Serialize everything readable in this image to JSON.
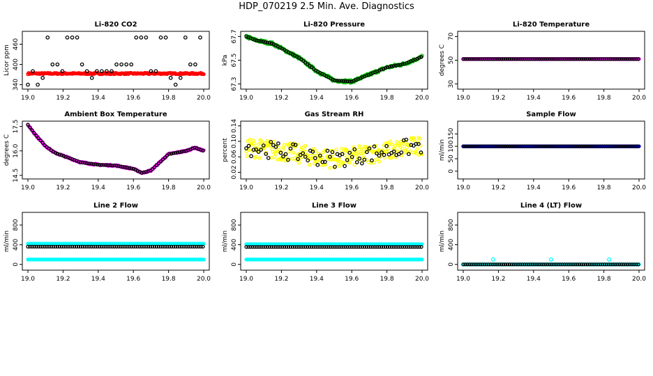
{
  "main_title": "HDP_070219  2.5 Min. Ave. Diagnostics",
  "chart_data": [
    {
      "type": "scatter",
      "title": "Li-820 CO2",
      "ylabel": "Licor ppm",
      "xlim": [
        19.0,
        20.0
      ],
      "ylim": [
        335,
        490
      ],
      "x_ticks": [
        "19.0",
        "19.2",
        "19.4",
        "19.6",
        "19.8",
        "20.0"
      ],
      "y_ticks": [
        "340",
        "400",
        "460"
      ],
      "series": [
        {
          "name": "co2",
          "color": "#ff0000",
          "style": "dense",
          "pattern": "flat",
          "base": 373,
          "jitter": 2
        },
        {
          "name": "co2_ref",
          "color": "#000000",
          "style": "sparse",
          "levels": [
            340,
            360,
            380,
            400,
            480
          ],
          "step": 0.028
        }
      ]
    },
    {
      "type": "scatter",
      "title": "Li-820 Pressure",
      "ylabel": "kPa",
      "xlim": [
        19.0,
        20.0
      ],
      "ylim": [
        67.28,
        67.72
      ],
      "x_ticks": [
        "19.0",
        "19.2",
        "19.4",
        "19.6",
        "19.8",
        "20.0"
      ],
      "y_ticks": [
        "67.3",
        "67.5",
        "67.7"
      ],
      "series": [
        {
          "name": "pressure",
          "color": "#00bb00",
          "style": "dense",
          "pattern": "pressure",
          "jitter": 0.012
        },
        {
          "name": "pressure_avg",
          "color": "#000000",
          "style": "line_sparse",
          "pattern": "pressure",
          "step": 0.012
        }
      ]
    },
    {
      "type": "scatter",
      "title": "Li-820 Temperature",
      "ylabel": "degrees C",
      "xlim": [
        19.0,
        20.0
      ],
      "ylim": [
        28,
        72
      ],
      "x_ticks": [
        "19.0",
        "19.2",
        "19.4",
        "19.6",
        "19.8",
        "20.0"
      ],
      "y_ticks": [
        "30",
        "50",
        "70"
      ],
      "series": [
        {
          "name": "temp",
          "color": "#ff00ff",
          "style": "dense",
          "pattern": "flat",
          "base": 51,
          "jitter": 0
        },
        {
          "name": "temp_avg",
          "color": "#000000",
          "style": "line_sparse",
          "pattern": "flat",
          "base": 51,
          "step": 0.012
        }
      ]
    },
    {
      "type": "scatter",
      "title": "Ambient Box Temperature",
      "ylabel": "degrees C",
      "xlim": [
        19.0,
        20.0
      ],
      "ylim": [
        14.45,
        17.65
      ],
      "x_ticks": [
        "19.0",
        "19.2",
        "19.4",
        "19.6",
        "19.8",
        "20.0"
      ],
      "y_ticks": [
        "14.5",
        "16.0",
        "17.5"
      ],
      "series": [
        {
          "name": "box_temp",
          "color": "#ff00ff",
          "style": "dense",
          "pattern": "boxtemp",
          "jitter": 0.04
        },
        {
          "name": "box_temp_avg",
          "color": "#000000",
          "style": "line_sparse",
          "pattern": "boxtemp",
          "step": 0.012
        }
      ]
    },
    {
      "type": "scatter",
      "title": "Gas Stream RH",
      "ylabel": "percent",
      "xlim": [
        19.0,
        20.0
      ],
      "ylim": [
        0.01,
        0.145
      ],
      "x_ticks": [
        "19.0",
        "19.2",
        "19.4",
        "19.6",
        "19.8",
        "20.0"
      ],
      "y_ticks": [
        "0.02",
        "0.06",
        "0.10",
        "0.14"
      ],
      "series": [
        {
          "name": "rh",
          "color": "#ffff00",
          "style": "dense",
          "pattern": "rh",
          "jitter": 0.025
        },
        {
          "name": "rh_avg",
          "color": "#000000",
          "style": "sparse_rand",
          "pattern": "rh",
          "step": 0.014,
          "jitter": 0.022
        }
      ]
    },
    {
      "type": "scatter",
      "title": "Sample Flow",
      "ylabel": "ml/min",
      "xlim": [
        19.0,
        20.0
      ],
      "ylim": [
        -20,
        190
      ],
      "x_ticks": [
        "19.0",
        "19.2",
        "19.4",
        "19.6",
        "19.8",
        "20.0"
      ],
      "y_ticks": [
        "0",
        "50",
        "100",
        "150"
      ],
      "series": [
        {
          "name": "flow",
          "color": "#0000ff",
          "style": "dense",
          "pattern": "flat",
          "base": 100,
          "jitter": 0
        },
        {
          "name": "flow_avg",
          "color": "#000000",
          "style": "line_sparse",
          "pattern": "flat",
          "base": 100,
          "step": 0.012
        }
      ]
    },
    {
      "type": "scatter",
      "title": "Line 2 Flow",
      "ylabel": "ml/min",
      "xlim": [
        19.0,
        20.0
      ],
      "ylim": [
        -60,
        1000
      ],
      "x_ticks": [
        "19.0",
        "19.2",
        "19.4",
        "19.6",
        "19.8",
        "20.0"
      ],
      "y_ticks": [
        "0",
        "400",
        "800"
      ],
      "series": [
        {
          "name": "flow_hi",
          "color": "#00ffff",
          "style": "dense",
          "pattern": "flat",
          "base": 420,
          "jitter": 0
        },
        {
          "name": "flow_lo",
          "color": "#00ffff",
          "style": "dense",
          "pattern": "flat",
          "base": 100,
          "jitter": 0
        },
        {
          "name": "flow_avg",
          "color": "#000000",
          "style": "line_sparse",
          "pattern": "flat",
          "base": 360,
          "step": 0.012
        }
      ]
    },
    {
      "type": "scatter",
      "title": "Line 3 Flow",
      "ylabel": "ml/min",
      "xlim": [
        19.0,
        20.0
      ],
      "ylim": [
        -60,
        1000
      ],
      "x_ticks": [
        "19.0",
        "19.2",
        "19.4",
        "19.6",
        "19.8",
        "20.0"
      ],
      "y_ticks": [
        "0",
        "400",
        "800"
      ],
      "series": [
        {
          "name": "flow_hi",
          "color": "#00ffff",
          "style": "dense",
          "pattern": "flat",
          "base": 410,
          "jitter": 0
        },
        {
          "name": "flow_lo",
          "color": "#00ffff",
          "style": "dense",
          "pattern": "flat",
          "base": 100,
          "jitter": 0
        },
        {
          "name": "flow_avg",
          "color": "#000000",
          "style": "line_sparse",
          "pattern": "flat",
          "base": 355,
          "step": 0.012
        }
      ]
    },
    {
      "type": "scatter",
      "title": "Line 4 (LT) Flow",
      "ylabel": "ml/min",
      "xlim": [
        19.0,
        20.0
      ],
      "ylim": [
        -60,
        1000
      ],
      "x_ticks": [
        "19.0",
        "19.2",
        "19.4",
        "19.6",
        "19.8",
        "20.0"
      ],
      "y_ticks": [
        "0",
        "400",
        "800"
      ],
      "series": [
        {
          "name": "flow",
          "color": "#00ffff",
          "style": "dense",
          "pattern": "flat",
          "base": 0,
          "jitter": 0
        },
        {
          "name": "flow_avg",
          "color": "#000000",
          "style": "line_sparse",
          "pattern": "flat",
          "base": 0,
          "step": 0.012
        },
        {
          "name": "flow_spikes",
          "color": "#00ffff",
          "style": "points",
          "x": [
            19.17,
            19.5,
            19.83
          ],
          "y": [
            100,
            100,
            100
          ]
        }
      ]
    }
  ]
}
